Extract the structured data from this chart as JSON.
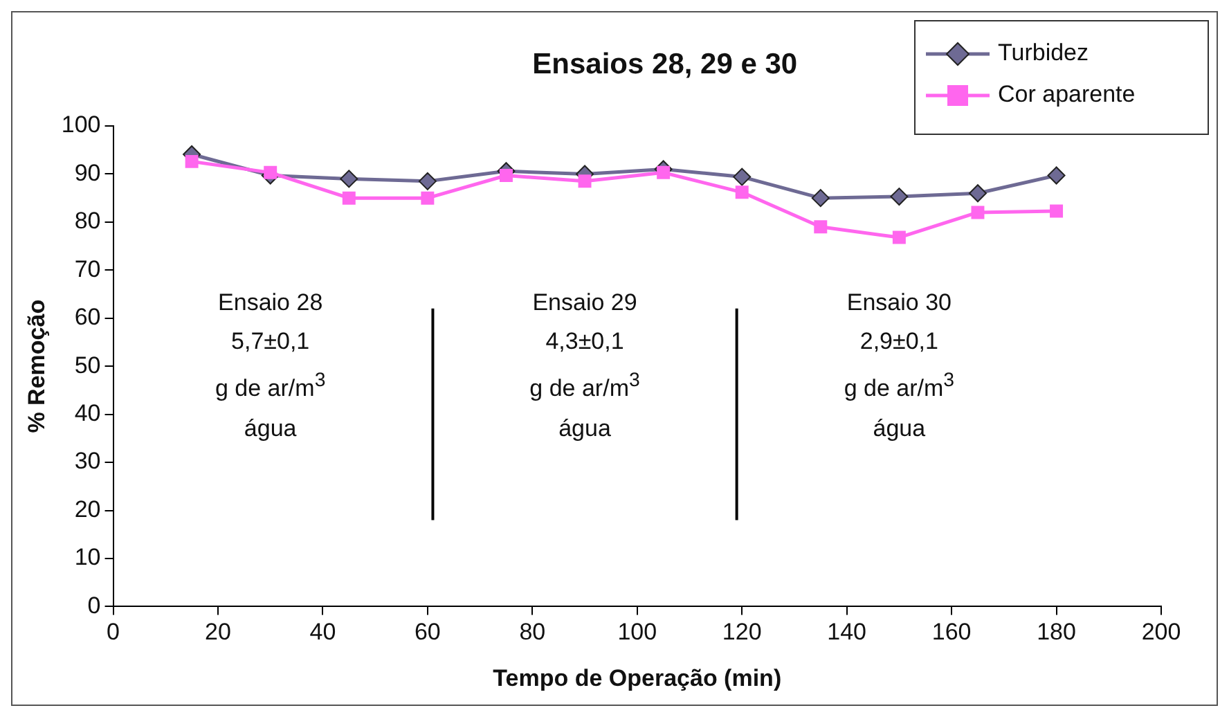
{
  "chart_data": {
    "type": "line",
    "title": "Ensaios 28, 29 e 30",
    "xlabel": "Tempo de Operação (min)",
    "ylabel": "% Remoção",
    "x": [
      15,
      30,
      45,
      60,
      75,
      90,
      105,
      120,
      135,
      150,
      165,
      180
    ],
    "series": [
      {
        "name": "Turbidez",
        "color": "#6e6a94",
        "marker": "diamond",
        "values": [
          94.1,
          89.7,
          89,
          88.5,
          90.6,
          90,
          91,
          89.4,
          85,
          85.3,
          86,
          89.7
        ]
      },
      {
        "name": "Cor aparente",
        "color": "#ff66ee",
        "marker": "square",
        "values": [
          92.6,
          90.3,
          85,
          85,
          89.7,
          88.5,
          90.3,
          86.2,
          79,
          76.8,
          82,
          82.3
        ]
      }
    ],
    "xlim": [
      0,
      200
    ],
    "xticks": [
      0,
      20,
      40,
      60,
      80,
      100,
      120,
      140,
      160,
      180,
      200
    ],
    "ylim": [
      0,
      100
    ],
    "yticks": [
      0,
      10,
      20,
      30,
      40,
      50,
      60,
      70,
      80,
      90,
      100
    ],
    "grid": false,
    "legend": "top right",
    "line_style": "solid",
    "ref_lines": [
      {
        "axis": "x",
        "value": 61,
        "color": "#000000"
      },
      {
        "axis": "x",
        "value": 119,
        "color": "#000000"
      }
    ],
    "annotations": [
      "Ensaio 28",
      "5,7±0,1",
      "g de ar/m$^{3}$",
      "água",
      "Ensaio 29",
      "4,3±0,1",
      "g de ar/m$^{3}$",
      "água",
      "Ensaio 30",
      "2,9±0,1",
      "g de ar/m$^{3}$",
      "água"
    ]
  }
}
